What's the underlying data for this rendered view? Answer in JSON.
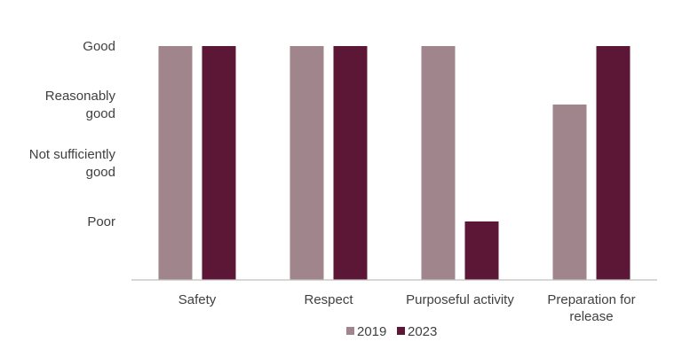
{
  "chart_data": {
    "type": "bar",
    "categories": [
      [
        "Safety"
      ],
      [
        "Respect"
      ],
      [
        "Purposeful activity"
      ],
      [
        "Preparation for",
        "release"
      ]
    ],
    "y_levels": [
      {
        "value": 4,
        "label": [
          "Good"
        ]
      },
      {
        "value": 3,
        "label": [
          "Reasonably",
          "good"
        ]
      },
      {
        "value": 2,
        "label": [
          "Not sufficiently",
          "good"
        ]
      },
      {
        "value": 1,
        "label": [
          "Poor"
        ]
      }
    ],
    "ylim": [
      0,
      4
    ],
    "grid": false,
    "legend_position": "bottom-center",
    "series": [
      {
        "name": "2019",
        "color": "#a0868c",
        "values": [
          4,
          4,
          4,
          3
        ]
      },
      {
        "name": "2023",
        "color": "#5c1737",
        "values": [
          4,
          4,
          1,
          4
        ]
      }
    ],
    "axis_color": "#bfbfbf"
  }
}
